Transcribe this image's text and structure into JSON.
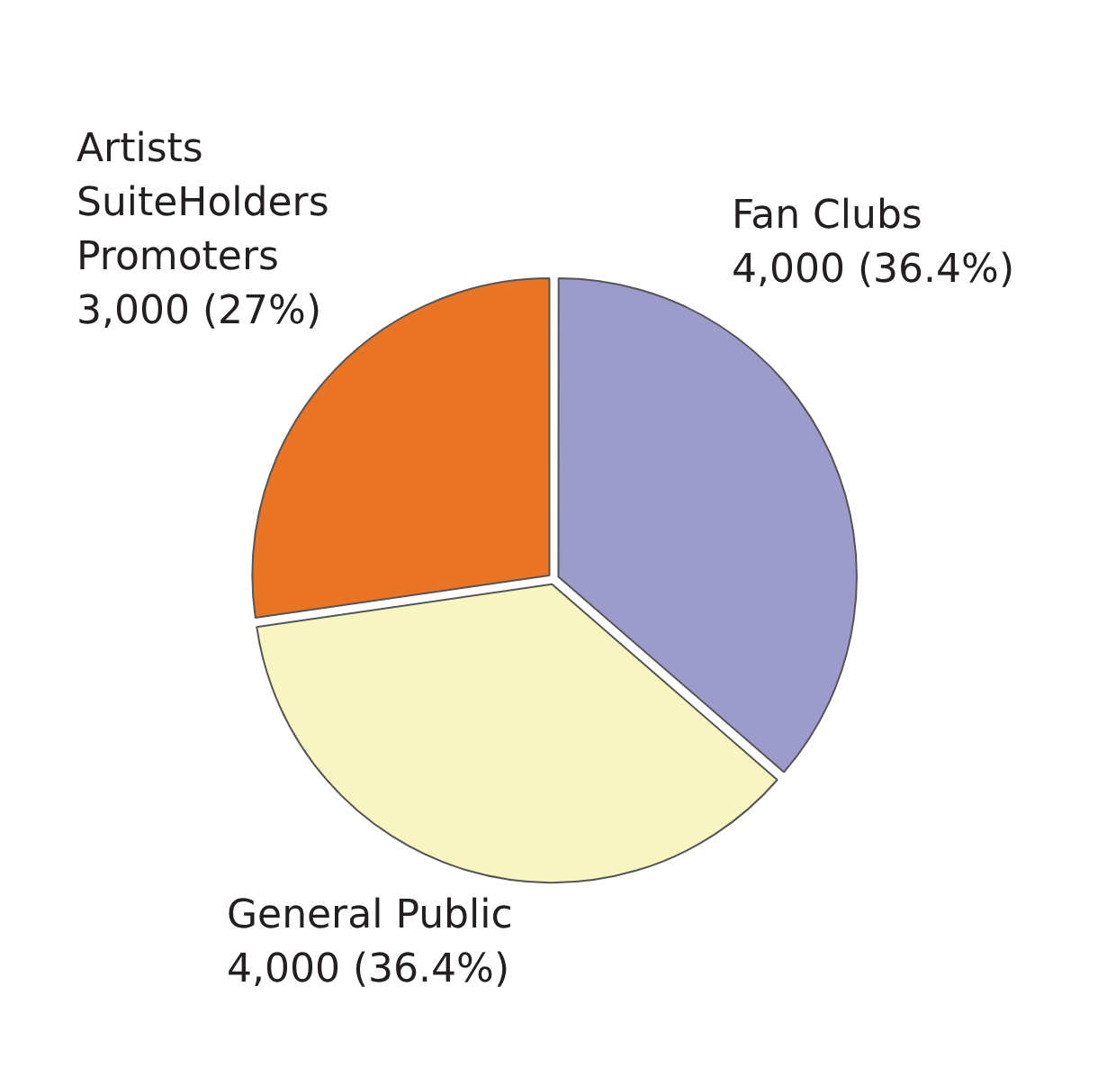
{
  "chart_data": {
    "type": "pie",
    "categories": [
      "Fan Clubs",
      "General Public",
      "Artists\nSuiteHolders\nPromoters"
    ],
    "values": [
      4000,
      4000,
      3000
    ],
    "colors": [
      "#9d9bcc",
      "#f7f5c0",
      "#e87424"
    ],
    "value_labels": [
      "4,000 (36.4%)",
      "4,000 (36.4%)",
      "3,000 (27%)"
    ],
    "legend": false
  }
}
